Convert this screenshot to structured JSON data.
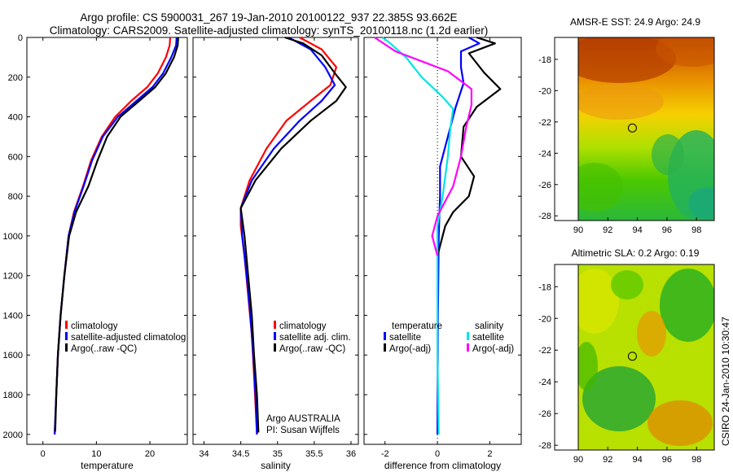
{
  "header": {
    "line1": "Argo profile: CS 5900031_267 19-Jan-2010 20100122_937 22.385S 93.662E",
    "line2": "Climatology: CARS2009. Satellite-adjusted climatology: synTS_20100118.nc (1.2d earlier)"
  },
  "credit": "CSIRO 24-Jan-2010 10:30:47",
  "colors": {
    "clim": "#ff0000",
    "sat": "#0000ff",
    "argo": "#000000",
    "sat_s": "#00e5e5",
    "argo_s": "#ff00ff"
  },
  "chart_data": [
    {
      "type": "line",
      "id": "temperature",
      "xlabel": "temperature",
      "ylabel": "",
      "xlim": [
        -3,
        27
      ],
      "ylim": [
        2050,
        0
      ],
      "xticks": [
        0,
        10,
        20
      ],
      "yticks": [
        0,
        200,
        400,
        600,
        800,
        1000,
        1200,
        1400,
        1600,
        1800,
        2000
      ],
      "legend": [
        "climatology",
        "satellite-adjusted climatolog",
        "Argo(..raw -QC)"
      ],
      "series": [
        {
          "name": "climatology",
          "color": "clim",
          "points": [
            [
              23.8,
              0
            ],
            [
              23.7,
              40
            ],
            [
              23,
              100
            ],
            [
              21.5,
              180
            ],
            [
              19.5,
              250
            ],
            [
              16.5,
              320
            ],
            [
              13.5,
              400
            ],
            [
              11,
              500
            ],
            [
              9,
              620
            ],
            [
              7.5,
              750
            ],
            [
              5.8,
              880
            ],
            [
              4.8,
              1000
            ],
            [
              4,
              1200
            ],
            [
              3.3,
              1400
            ],
            [
              2.8,
              1600
            ],
            [
              2.5,
              1800
            ],
            [
              2.2,
              2000
            ]
          ]
        },
        {
          "name": "satellite-adjusted climatolog",
          "color": "sat",
          "points": [
            [
              25,
              0
            ],
            [
              24.9,
              40
            ],
            [
              24,
              100
            ],
            [
              22.5,
              180
            ],
            [
              20.5,
              250
            ],
            [
              17.5,
              320
            ],
            [
              14,
              400
            ],
            [
              11.2,
              500
            ],
            [
              9.2,
              620
            ],
            [
              7.6,
              750
            ],
            [
              5.9,
              880
            ],
            [
              4.8,
              1000
            ],
            [
              4,
              1200
            ],
            [
              3.3,
              1400
            ],
            [
              2.8,
              1600
            ],
            [
              2.5,
              1800
            ],
            [
              2.2,
              2000
            ]
          ]
        },
        {
          "name": "Argo(..raw -QC)",
          "color": "argo",
          "points": [
            [
              25.3,
              0
            ],
            [
              25.2,
              40
            ],
            [
              24.5,
              100
            ],
            [
              23,
              180
            ],
            [
              21,
              250
            ],
            [
              18,
              320
            ],
            [
              14.5,
              400
            ],
            [
              12,
              500
            ],
            [
              10.2,
              620
            ],
            [
              8.5,
              750
            ],
            [
              6.2,
              880
            ],
            [
              4.9,
              1000
            ],
            [
              4,
              1200
            ],
            [
              3.3,
              1400
            ],
            [
              2.8,
              1600
            ],
            [
              2.5,
              1800
            ],
            [
              2.3,
              1985
            ]
          ]
        }
      ]
    },
    {
      "type": "line",
      "id": "salinity",
      "xlabel": "salinity",
      "ylabel": "",
      "xlim": [
        33.85,
        36.1
      ],
      "ylim": [
        2050,
        0
      ],
      "xticks": [
        34,
        34.5,
        35,
        35.5,
        36
      ],
      "yticks": [
        0,
        200,
        400,
        600,
        800,
        1000,
        1200,
        1400,
        1600,
        1800,
        2000
      ],
      "legend": [
        "climatology",
        "satellite adj. clim.",
        "Argo(..raw -QC)"
      ],
      "annotations": [
        "Argo AUSTRALIA",
        "PI: Susan Wijffels"
      ],
      "series": [
        {
          "name": "climatology",
          "color": "clim",
          "points": [
            [
              35.3,
              0
            ],
            [
              35.6,
              60
            ],
            [
              35.8,
              150
            ],
            [
              35.72,
              240
            ],
            [
              35.45,
              320
            ],
            [
              35.12,
              420
            ],
            [
              34.85,
              560
            ],
            [
              34.62,
              720
            ],
            [
              34.5,
              860
            ],
            [
              34.5,
              950
            ],
            [
              34.55,
              1100
            ],
            [
              34.6,
              1300
            ],
            [
              34.65,
              1500
            ],
            [
              34.68,
              1700
            ],
            [
              34.7,
              1850
            ],
            [
              34.72,
              2000
            ]
          ]
        },
        {
          "name": "satellite adj. clim.",
          "color": "sat",
          "points": [
            [
              35.15,
              0
            ],
            [
              35.45,
              60
            ],
            [
              35.65,
              150
            ],
            [
              35.78,
              240
            ],
            [
              35.6,
              320
            ],
            [
              35.3,
              420
            ],
            [
              34.95,
              560
            ],
            [
              34.65,
              720
            ],
            [
              34.5,
              860
            ],
            [
              34.52,
              1000
            ],
            [
              34.58,
              1200
            ],
            [
              34.63,
              1400
            ],
            [
              34.67,
              1600
            ],
            [
              34.7,
              1800
            ],
            [
              34.72,
              2000
            ]
          ]
        },
        {
          "name": "Argo(..raw -QC)",
          "color": "argo",
          "points": [
            [
              35.1,
              0
            ],
            [
              35.35,
              30
            ],
            [
              35.6,
              90
            ],
            [
              35.78,
              180
            ],
            [
              35.93,
              250
            ],
            [
              35.8,
              320
            ],
            [
              35.45,
              420
            ],
            [
              35.05,
              560
            ],
            [
              34.7,
              720
            ],
            [
              34.5,
              860
            ],
            [
              34.55,
              1000
            ],
            [
              34.6,
              1200
            ],
            [
              34.65,
              1400
            ],
            [
              34.68,
              1600
            ],
            [
              34.72,
              1800
            ],
            [
              34.74,
              1990
            ]
          ]
        }
      ]
    },
    {
      "type": "line",
      "id": "difference",
      "xlabel": "difference from climatology",
      "ylabel": "",
      "xlim": [
        -2.8,
        3.2
      ],
      "ylim": [
        2050,
        0
      ],
      "xticks": [
        -2,
        0,
        2
      ],
      "yticks": [
        0,
        200,
        400,
        600,
        800,
        1000,
        1200,
        1400,
        1600,
        1800,
        2000
      ],
      "zero_line": 0,
      "legend_titles": [
        "temperature",
        "salinity"
      ],
      "legend": [
        "satellite",
        "Argo(-adj)",
        "satellite",
        "Argo(-adj)"
      ],
      "series": [
        {
          "name": "satellite",
          "group": "temperature",
          "color": "sat",
          "points": [
            [
              1.2,
              0
            ],
            [
              1.6,
              30
            ],
            [
              0.9,
              70
            ],
            [
              0.9,
              150
            ],
            [
              1,
              230
            ],
            [
              0.7,
              350
            ],
            [
              0.4,
              500
            ],
            [
              0.1,
              650
            ],
            [
              0.1,
              800
            ],
            [
              0.05,
              1000
            ],
            [
              0.02,
              1400
            ],
            [
              0.0,
              2000
            ]
          ]
        },
        {
          "name": "Argo(-adj)",
          "group": "temperature",
          "color": "argo",
          "points": [
            [
              1.5,
              0
            ],
            [
              2.2,
              30
            ],
            [
              1.2,
              80
            ],
            [
              1.8,
              180
            ],
            [
              2.4,
              260
            ],
            [
              1.5,
              350
            ],
            [
              1.0,
              450
            ],
            [
              0.9,
              600
            ],
            [
              1.4,
              700
            ],
            [
              1.2,
              800
            ],
            [
              0.6,
              880
            ],
            [
              0.3,
              950
            ],
            [
              0.0,
              1100
            ]
          ]
        },
        {
          "name": "satellite",
          "group": "salinity",
          "color": "sat_s",
          "points": [
            [
              -2.1,
              0
            ],
            [
              -1.8,
              30
            ],
            [
              -1.2,
              100
            ],
            [
              -0.6,
              200
            ],
            [
              0.2,
              300
            ],
            [
              0.6,
              360
            ],
            [
              0.5,
              450
            ],
            [
              0.4,
              600
            ],
            [
              0.2,
              800
            ],
            [
              0.0,
              950
            ],
            [
              0.0,
              1200
            ],
            [
              0.0,
              1600
            ],
            [
              0.05,
              2000
            ]
          ]
        },
        {
          "name": "Argo(-adj)",
          "group": "salinity",
          "color": "argo_s",
          "points": [
            [
              -2.4,
              0
            ],
            [
              -1.6,
              70
            ],
            [
              -0.6,
              120
            ],
            [
              0.4,
              170
            ],
            [
              1.3,
              260
            ],
            [
              1.3,
              340
            ],
            [
              1.1,
              450
            ],
            [
              0.9,
              600
            ],
            [
              0.6,
              750
            ],
            [
              0.0,
              900
            ],
            [
              -0.2,
              1000
            ],
            [
              0.0,
              1100
            ]
          ]
        }
      ]
    },
    {
      "type": "heatmap",
      "id": "sst_map",
      "title": "AMSR-E SST: 24.9 Argo: 24.9",
      "xlim": [
        89.8,
        99.2
      ],
      "ylim": [
        -28.3,
        -16.6
      ],
      "xticks": [
        90,
        92,
        94,
        96,
        98
      ],
      "yticks": [
        -18,
        -20,
        -22,
        -24,
        -26,
        -28
      ],
      "marker": {
        "lon": 93.66,
        "lat": -22.385
      }
    },
    {
      "type": "heatmap",
      "id": "sla_map",
      "title": "Altimetric SLA: 0.2 Argo: 0.19",
      "xlim": [
        89.8,
        99.2
      ],
      "ylim": [
        -28.3,
        -16.6
      ],
      "xticks": [
        90,
        92,
        94,
        96,
        98
      ],
      "yticks": [
        -18,
        -20,
        -22,
        -24,
        -26,
        -28
      ],
      "marker": {
        "lon": 93.66,
        "lat": -22.385
      }
    }
  ]
}
